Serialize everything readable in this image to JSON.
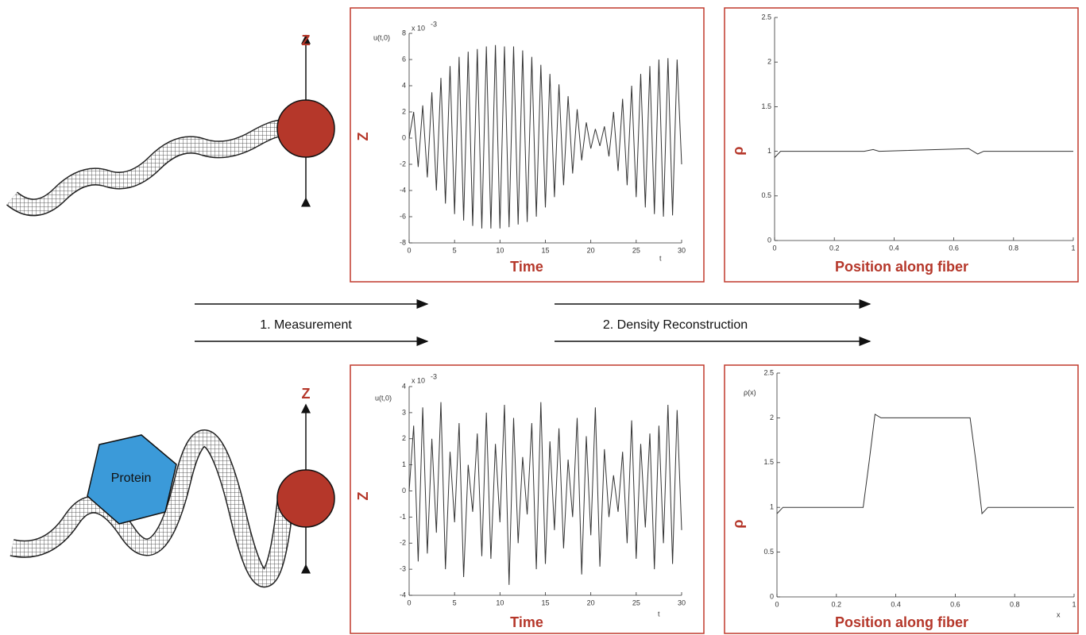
{
  "top_row": {
    "fiber": {
      "axis_label": "Z"
    }
  },
  "bottom_row": {
    "fiber": {
      "axis_label": "Z",
      "protein_label": "Protein"
    }
  },
  "steps": {
    "measurement": "1. Measurement",
    "reconstruction": "2. Density Reconstruction"
  },
  "chart_data": [
    {
      "type": "line",
      "ylabel": "Z",
      "xlabel": "Time",
      "y_inner_label": "u(t,0)",
      "x_inner_label": "t",
      "scale_label": "x 10",
      "scale_exponent": "-3",
      "color": "#333333",
      "x": [
        0,
        0.5,
        1,
        1.5,
        2,
        2.5,
        3,
        3.5,
        4,
        4.5,
        5,
        5.5,
        6,
        6.5,
        7,
        7.5,
        8,
        8.5,
        9,
        9.5,
        10,
        10.5,
        11,
        11.5,
        12,
        12.5,
        13,
        13.5,
        14,
        14.5,
        15,
        15.5,
        16,
        16.5,
        17,
        17.5,
        18,
        18.5,
        19,
        19.5,
        20,
        20.5,
        21,
        21.5,
        22,
        22.5,
        23,
        23.5,
        24,
        24.5,
        25,
        25.5,
        26,
        26.5,
        27,
        27.5,
        28,
        28.5,
        29,
        29.5,
        30
      ],
      "values": [
        0,
        2,
        -2.2,
        2.5,
        -3,
        3.5,
        -4,
        4.6,
        -5,
        5.5,
        -5.8,
        6.2,
        -6.3,
        6.6,
        -6.7,
        6.8,
        -6.9,
        7,
        -6.9,
        7.1,
        -6.9,
        7,
        -6.8,
        7,
        -6.6,
        6.7,
        -6.4,
        6.2,
        -6,
        5.6,
        -5.3,
        4.9,
        -4.5,
        4.1,
        -3.6,
        3.2,
        -2.7,
        2.2,
        -1.7,
        1.2,
        -0.8,
        0.7,
        -0.6,
        0.9,
        -1.4,
        2,
        -2.5,
        3,
        -3.6,
        4,
        -4.5,
        4.9,
        -5.3,
        5.5,
        -5.8,
        6,
        -6,
        6.1,
        -5.9,
        6,
        -2
      ],
      "xlim": [
        0,
        30
      ],
      "xticks": [
        0,
        5,
        10,
        15,
        20,
        25,
        30
      ],
      "ylim": [
        -8,
        8
      ],
      "yticks": [
        -8,
        -6,
        -4,
        -2,
        0,
        2,
        4,
        6,
        8
      ]
    },
    {
      "type": "line",
      "ylabel": "ρ",
      "xlabel": "Position along fiber",
      "color": "#333333",
      "x": [
        0,
        0.02,
        0.04,
        0.3,
        0.33,
        0.35,
        0.65,
        0.68,
        0.7,
        1
      ],
      "values": [
        0.93,
        1,
        1,
        1,
        1.02,
        1,
        1.03,
        0.97,
        1,
        1
      ],
      "xlim": [
        0,
        1
      ],
      "xticks": [
        0,
        0.2,
        0.4,
        0.6,
        0.8,
        1
      ],
      "ylim": [
        0,
        2.5
      ],
      "yticks": [
        0,
        0.5,
        1,
        1.5,
        2,
        2.5
      ]
    },
    {
      "type": "line",
      "ylabel": "Z",
      "xlabel": "Time",
      "y_inner_label": "u(t,0)",
      "x_inner_label": "t",
      "scale_label": "x 10",
      "scale_exponent": "-3",
      "color": "#333333",
      "x": [
        0,
        0.5,
        1,
        1.5,
        2,
        2.5,
        3,
        3.5,
        4,
        4.5,
        5,
        5.5,
        6,
        6.5,
        7,
        7.5,
        8,
        8.5,
        9,
        9.5,
        10,
        10.5,
        11,
        11.5,
        12,
        12.5,
        13,
        13.5,
        14,
        14.5,
        15,
        15.5,
        16,
        16.5,
        17,
        17.5,
        18,
        18.5,
        19,
        19.5,
        20,
        20.5,
        21,
        21.5,
        22,
        22.5,
        23,
        23.5,
        24,
        24.5,
        25,
        25.5,
        26,
        26.5,
        27,
        27.5,
        28,
        28.5,
        29,
        29.5,
        30
      ],
      "values": [
        0,
        2.5,
        -2.7,
        3.2,
        -2.4,
        2,
        -1.6,
        3.4,
        -3,
        1.5,
        -1.2,
        2.6,
        -3.3,
        1,
        -0.8,
        2.2,
        -2.5,
        3,
        -2.6,
        1.8,
        -1.2,
        3.3,
        -3.6,
        2.8,
        -2,
        1.3,
        -0.9,
        2.6,
        -3,
        3.4,
        -2.8,
        1.9,
        -1.5,
        2.4,
        -2.2,
        1.2,
        -1,
        2.8,
        -3.2,
        2.1,
        -1.7,
        3.2,
        -2.9,
        1.6,
        -1,
        0.6,
        -0.8,
        1.5,
        -2,
        2.7,
        -2.6,
        1.8,
        -1.4,
        2.2,
        -3,
        2.5,
        -2,
        3.3,
        -2.8,
        3.1,
        -1.5
      ],
      "xlim": [
        0,
        30
      ],
      "xticks": [
        0,
        5,
        10,
        15,
        20,
        25,
        30
      ],
      "ylim": [
        -4,
        4
      ],
      "yticks": [
        -4,
        -3,
        -2,
        -1,
        0,
        1,
        2,
        3,
        4
      ]
    },
    {
      "type": "line",
      "ylabel": "ρ",
      "xlabel": "Position along fiber",
      "y_inner_label": "ρ(x)",
      "x_inner_label": "x",
      "color": "#333333",
      "x": [
        0,
        0.02,
        0.04,
        0.29,
        0.31,
        0.33,
        0.35,
        0.65,
        0.67,
        0.69,
        0.71,
        1
      ],
      "values": [
        0.93,
        1,
        1,
        1,
        1.5,
        2.04,
        2,
        2,
        1.5,
        0.93,
        1,
        1
      ],
      "xlim": [
        0,
        1
      ],
      "xticks": [
        0,
        0.2,
        0.4,
        0.6,
        0.8,
        1
      ],
      "ylim": [
        0,
        2.5
      ],
      "yticks": [
        0,
        0.5,
        1,
        1.5,
        2,
        2.5
      ]
    }
  ]
}
